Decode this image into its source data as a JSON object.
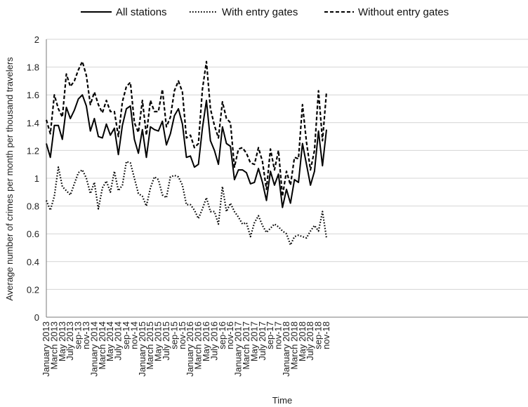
{
  "chart_data": {
    "type": "line",
    "title": "",
    "xlabel": "Time",
    "ylabel": "Average number of crimes per month per thousand travelers",
    "ylim": [
      0,
      2
    ],
    "yticks": [
      "0",
      "0.2",
      "0.4",
      "0.6",
      "0.8",
      "1",
      "1.2",
      "1.4",
      "1.6",
      "1.8",
      "2"
    ],
    "grid": "horizontal",
    "legend_position": "top",
    "x_tick_labels": [
      "January 2013",
      "March 2013",
      "May 2013",
      "July 2013",
      "sep-13",
      "nov-13",
      "January 2014",
      "March 2014",
      "May 2014",
      "July 2014",
      "sep-14",
      "nov-14",
      "January 2015",
      "March 2015",
      "May 2015",
      "July 2015",
      "sep-15",
      "nov-15",
      "January 2016",
      "March 2016",
      "May 2016",
      "July 2016",
      "sep-16",
      "nov-16",
      "January 2017",
      "March 2017",
      "May 2017",
      "July 2017",
      "sep-17",
      "nov-17",
      "January 2018",
      "March 2018",
      "May 2018",
      "July 2018",
      "sep-18",
      "nov-18"
    ],
    "series": [
      {
        "name": "All stations",
        "style": "solid",
        "values": [
          1.25,
          1.15,
          1.38,
          1.38,
          1.28,
          1.51,
          1.43,
          1.49,
          1.57,
          1.6,
          1.52,
          1.34,
          1.43,
          1.3,
          1.29,
          1.39,
          1.31,
          1.36,
          1.17,
          1.38,
          1.5,
          1.52,
          1.28,
          1.18,
          1.35,
          1.15,
          1.37,
          1.35,
          1.34,
          1.41,
          1.24,
          1.32,
          1.45,
          1.5,
          1.39,
          1.15,
          1.16,
          1.08,
          1.1,
          1.36,
          1.56,
          1.27,
          1.2,
          1.1,
          1.37,
          1.25,
          1.23,
          0.99,
          1.06,
          1.06,
          1.04,
          0.96,
          0.97,
          1.07,
          0.97,
          0.84,
          1.05,
          0.95,
          1.03,
          0.79,
          0.92,
          0.82,
          0.99,
          0.97,
          1.25,
          1.1,
          0.95,
          1.05,
          1.34,
          1.09,
          1.35
        ]
      },
      {
        "name": "With entry gates",
        "style": "dotted",
        "values": [
          0.84,
          0.77,
          0.87,
          1.08,
          0.94,
          0.91,
          0.88,
          0.96,
          1.04,
          1.06,
          1.0,
          0.89,
          0.97,
          0.78,
          0.93,
          0.98,
          0.9,
          1.05,
          0.91,
          0.95,
          1.12,
          1.11,
          1.0,
          0.89,
          0.87,
          0.8,
          0.93,
          1.01,
          0.99,
          0.88,
          0.86,
          1.01,
          1.02,
          1.01,
          0.95,
          0.81,
          0.81,
          0.77,
          0.71,
          0.78,
          0.86,
          0.76,
          0.76,
          0.67,
          0.94,
          0.76,
          0.82,
          0.76,
          0.72,
          0.67,
          0.68,
          0.58,
          0.68,
          0.73,
          0.66,
          0.61,
          0.64,
          0.67,
          0.65,
          0.62,
          0.6,
          0.52,
          0.58,
          0.59,
          0.58,
          0.57,
          0.62,
          0.66,
          0.62,
          0.76,
          0.57
        ]
      },
      {
        "name": "Without entry gates",
        "style": "dashed",
        "values": [
          1.42,
          1.32,
          1.6,
          1.5,
          1.44,
          1.75,
          1.66,
          1.7,
          1.78,
          1.84,
          1.74,
          1.53,
          1.62,
          1.53,
          1.47,
          1.56,
          1.48,
          1.48,
          1.3,
          1.55,
          1.66,
          1.69,
          1.4,
          1.33,
          1.56,
          1.31,
          1.56,
          1.48,
          1.48,
          1.64,
          1.37,
          1.44,
          1.63,
          1.7,
          1.62,
          1.29,
          1.31,
          1.22,
          1.25,
          1.64,
          1.84,
          1.5,
          1.38,
          1.29,
          1.55,
          1.43,
          1.4,
          1.08,
          1.21,
          1.22,
          1.18,
          1.11,
          1.1,
          1.22,
          1.12,
          0.92,
          1.21,
          1.06,
          1.2,
          0.87,
          1.05,
          0.95,
          1.15,
          1.14,
          1.53,
          1.26,
          1.06,
          1.2,
          1.63,
          1.27,
          1.62
        ]
      }
    ]
  }
}
